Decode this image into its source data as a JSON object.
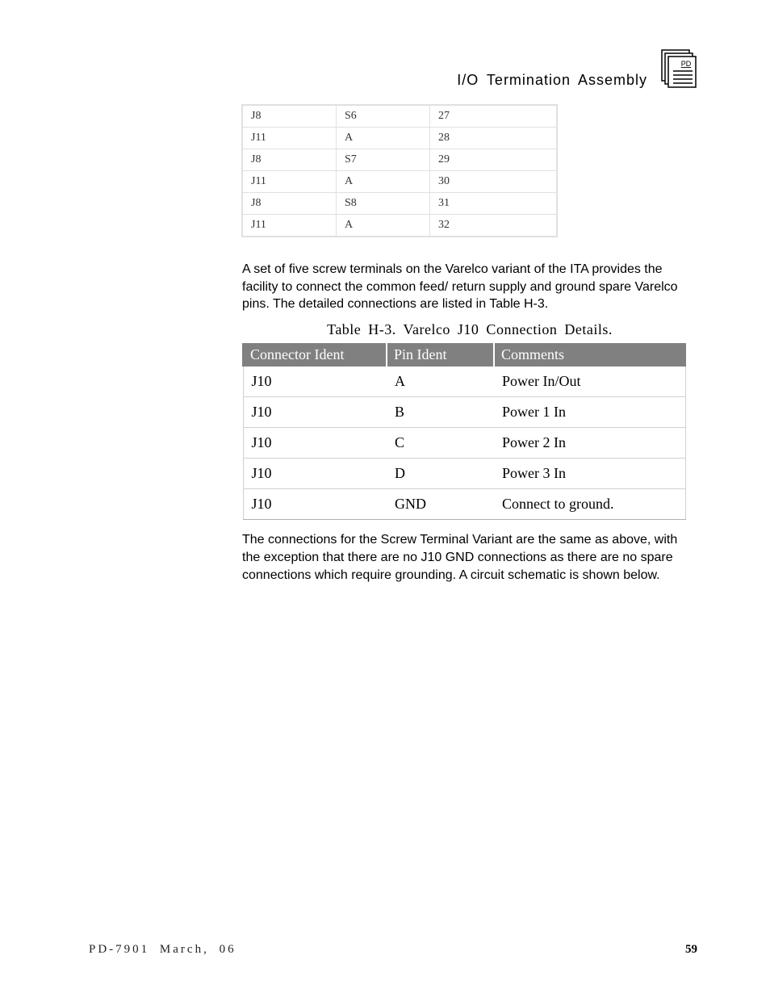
{
  "header": {
    "title": "I/O  Termination  Assembly",
    "icon_label": "PD"
  },
  "table1": {
    "rows": [
      [
        "J8",
        "S6",
        "27"
      ],
      [
        "J11",
        "A",
        "28"
      ],
      [
        "J8",
        "S7",
        "29"
      ],
      [
        "J11",
        "A",
        "30"
      ],
      [
        "J8",
        "S8",
        "31"
      ],
      [
        "J11",
        "A",
        "32"
      ]
    ]
  },
  "para1": "A set of five screw terminals on the Varelco variant of the ITA provides the facility to connect the common feed/ return supply and ground spare Varelco pins.  The detailed connections are listed in Table H-3.",
  "table2": {
    "caption": "Table H-3.    Varelco  J10  Connection  Details.",
    "columns": [
      "Connector Ident",
      "Pin Ident",
      "Comments"
    ],
    "rows": [
      [
        "J10",
        "A",
        "Power In/Out"
      ],
      [
        "J10",
        "B",
        "Power 1 In"
      ],
      [
        "J10",
        "C",
        "Power 2 In"
      ],
      [
        "J10",
        "D",
        "Power 3 In"
      ],
      [
        "J10",
        "GND",
        "Connect to ground."
      ]
    ]
  },
  "para2": "The connections for the Screw Terminal Variant are the same as above, with the exception that there are no J10 GND connections as there are no spare connections which require grounding.  A circuit schematic is shown below.",
  "footer": {
    "left": "PD-7901 March, 06",
    "page": "59"
  },
  "colors": {
    "table_header_bg": "#808080",
    "table_header_fg": "#ffffff",
    "table_border": "#e0e0e0",
    "text": "#000000"
  }
}
